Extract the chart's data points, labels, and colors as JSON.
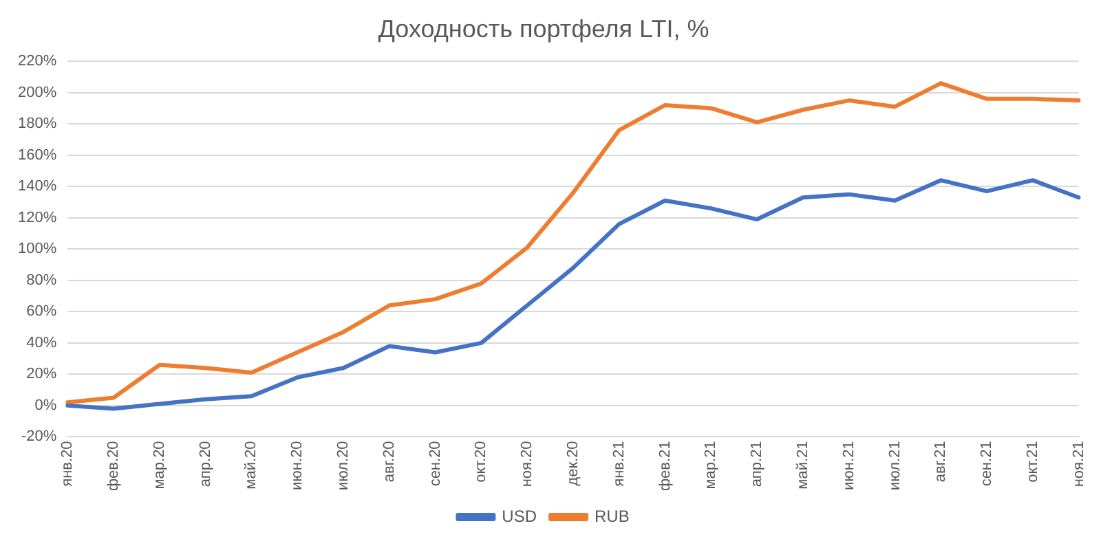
{
  "chart_data": {
    "type": "line",
    "title": "Доходность портфеля LTI, %",
    "categories": [
      "янв.20",
      "фев.20",
      "мар.20",
      "апр.20",
      "май.20",
      "июн.20",
      "июл.20",
      "авг.20",
      "сен.20",
      "окт.20",
      "ноя.20",
      "дек.20",
      "янв.21",
      "фев.21",
      "мар.21",
      "апр.21",
      "май.21",
      "июн.21",
      "июл.21",
      "авг.21",
      "сен.21",
      "окт.21",
      "ноя.21"
    ],
    "series": [
      {
        "name": "USD",
        "color": "#4472c4",
        "values": [
          0,
          -2,
          1,
          4,
          6,
          18,
          24,
          38,
          34,
          40,
          64,
          88,
          116,
          131,
          126,
          119,
          133,
          135,
          131,
          144,
          137,
          144,
          133
        ]
      },
      {
        "name": "RUB",
        "color": "#ed7d31",
        "values": [
          2,
          5,
          26,
          24,
          21,
          34,
          47,
          64,
          68,
          78,
          101,
          136,
          176,
          192,
          190,
          181,
          189,
          195,
          191,
          206,
          196,
          196,
          195
        ]
      }
    ],
    "ylim": [
      -20,
      220
    ],
    "yticks": [
      {
        "value": -20,
        "label": "-20%"
      },
      {
        "value": 0,
        "label": "0%"
      },
      {
        "value": 20,
        "label": "20%"
      },
      {
        "value": 40,
        "label": "40%"
      },
      {
        "value": 60,
        "label": "60%"
      },
      {
        "value": 80,
        "label": "80%"
      },
      {
        "value": 100,
        "label": "100%"
      },
      {
        "value": 120,
        "label": "120%"
      },
      {
        "value": 140,
        "label": "140%"
      },
      {
        "value": 160,
        "label": "160%"
      },
      {
        "value": 180,
        "label": "180%"
      },
      {
        "value": 200,
        "label": "200%"
      },
      {
        "value": 220,
        "label": "220%"
      }
    ],
    "grid": "y",
    "legend": "bottom",
    "marker": "none",
    "line_style": "solid"
  }
}
